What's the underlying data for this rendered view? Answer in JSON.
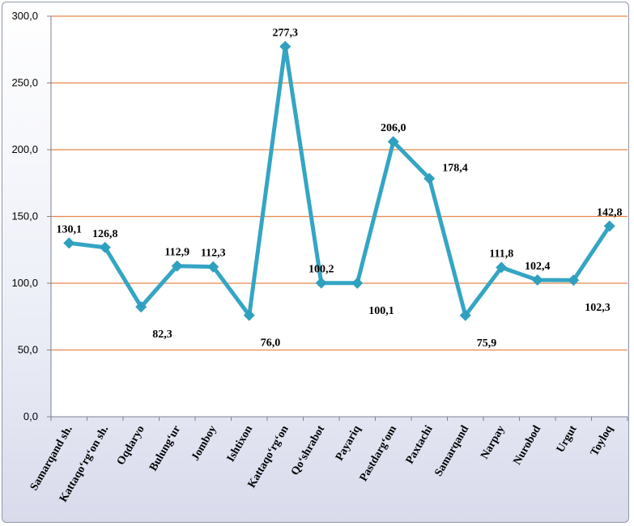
{
  "chart_data": {
    "type": "line",
    "categories": [
      "Samarqand sh.",
      "Kattaqo‘rg‘on sh.",
      "Oqdaryo",
      "Bulung‘ur",
      "Jomboy",
      "Ishtixon",
      "Kattaqo‘rg‘on",
      "Qo‘shrabot",
      "Payariq",
      "Pastdarg‘om",
      "Paxtachi",
      "Samarqand",
      "Narpay",
      "Nurobod",
      "Urgut",
      "Toyloq"
    ],
    "values": [
      130.1,
      126.8,
      82.3,
      112.9,
      112.3,
      76.0,
      277.3,
      100.2,
      100.1,
      206.0,
      178.4,
      75.9,
      111.8,
      102.4,
      102.3,
      142.8
    ],
    "data_labels": [
      "130,1",
      "126,8",
      "82,3",
      "112,9",
      "112,3",
      "76,0",
      "277,3",
      "100,2",
      "100,1",
      "206,0",
      "178,4",
      "75,9",
      "111,8",
      "102,4",
      "102,3",
      "142,8"
    ],
    "yticks": [
      "0,0",
      "50,0",
      "100,0",
      "150,0",
      "200,0",
      "250,0",
      "300,0"
    ],
    "ylim": [
      0,
      300
    ],
    "grid": true,
    "legend": "none",
    "colors": {
      "line": "#35A5C4",
      "marker": "#2FA0BF",
      "grid": "#E8864A",
      "axis": "#7F8290"
    }
  }
}
